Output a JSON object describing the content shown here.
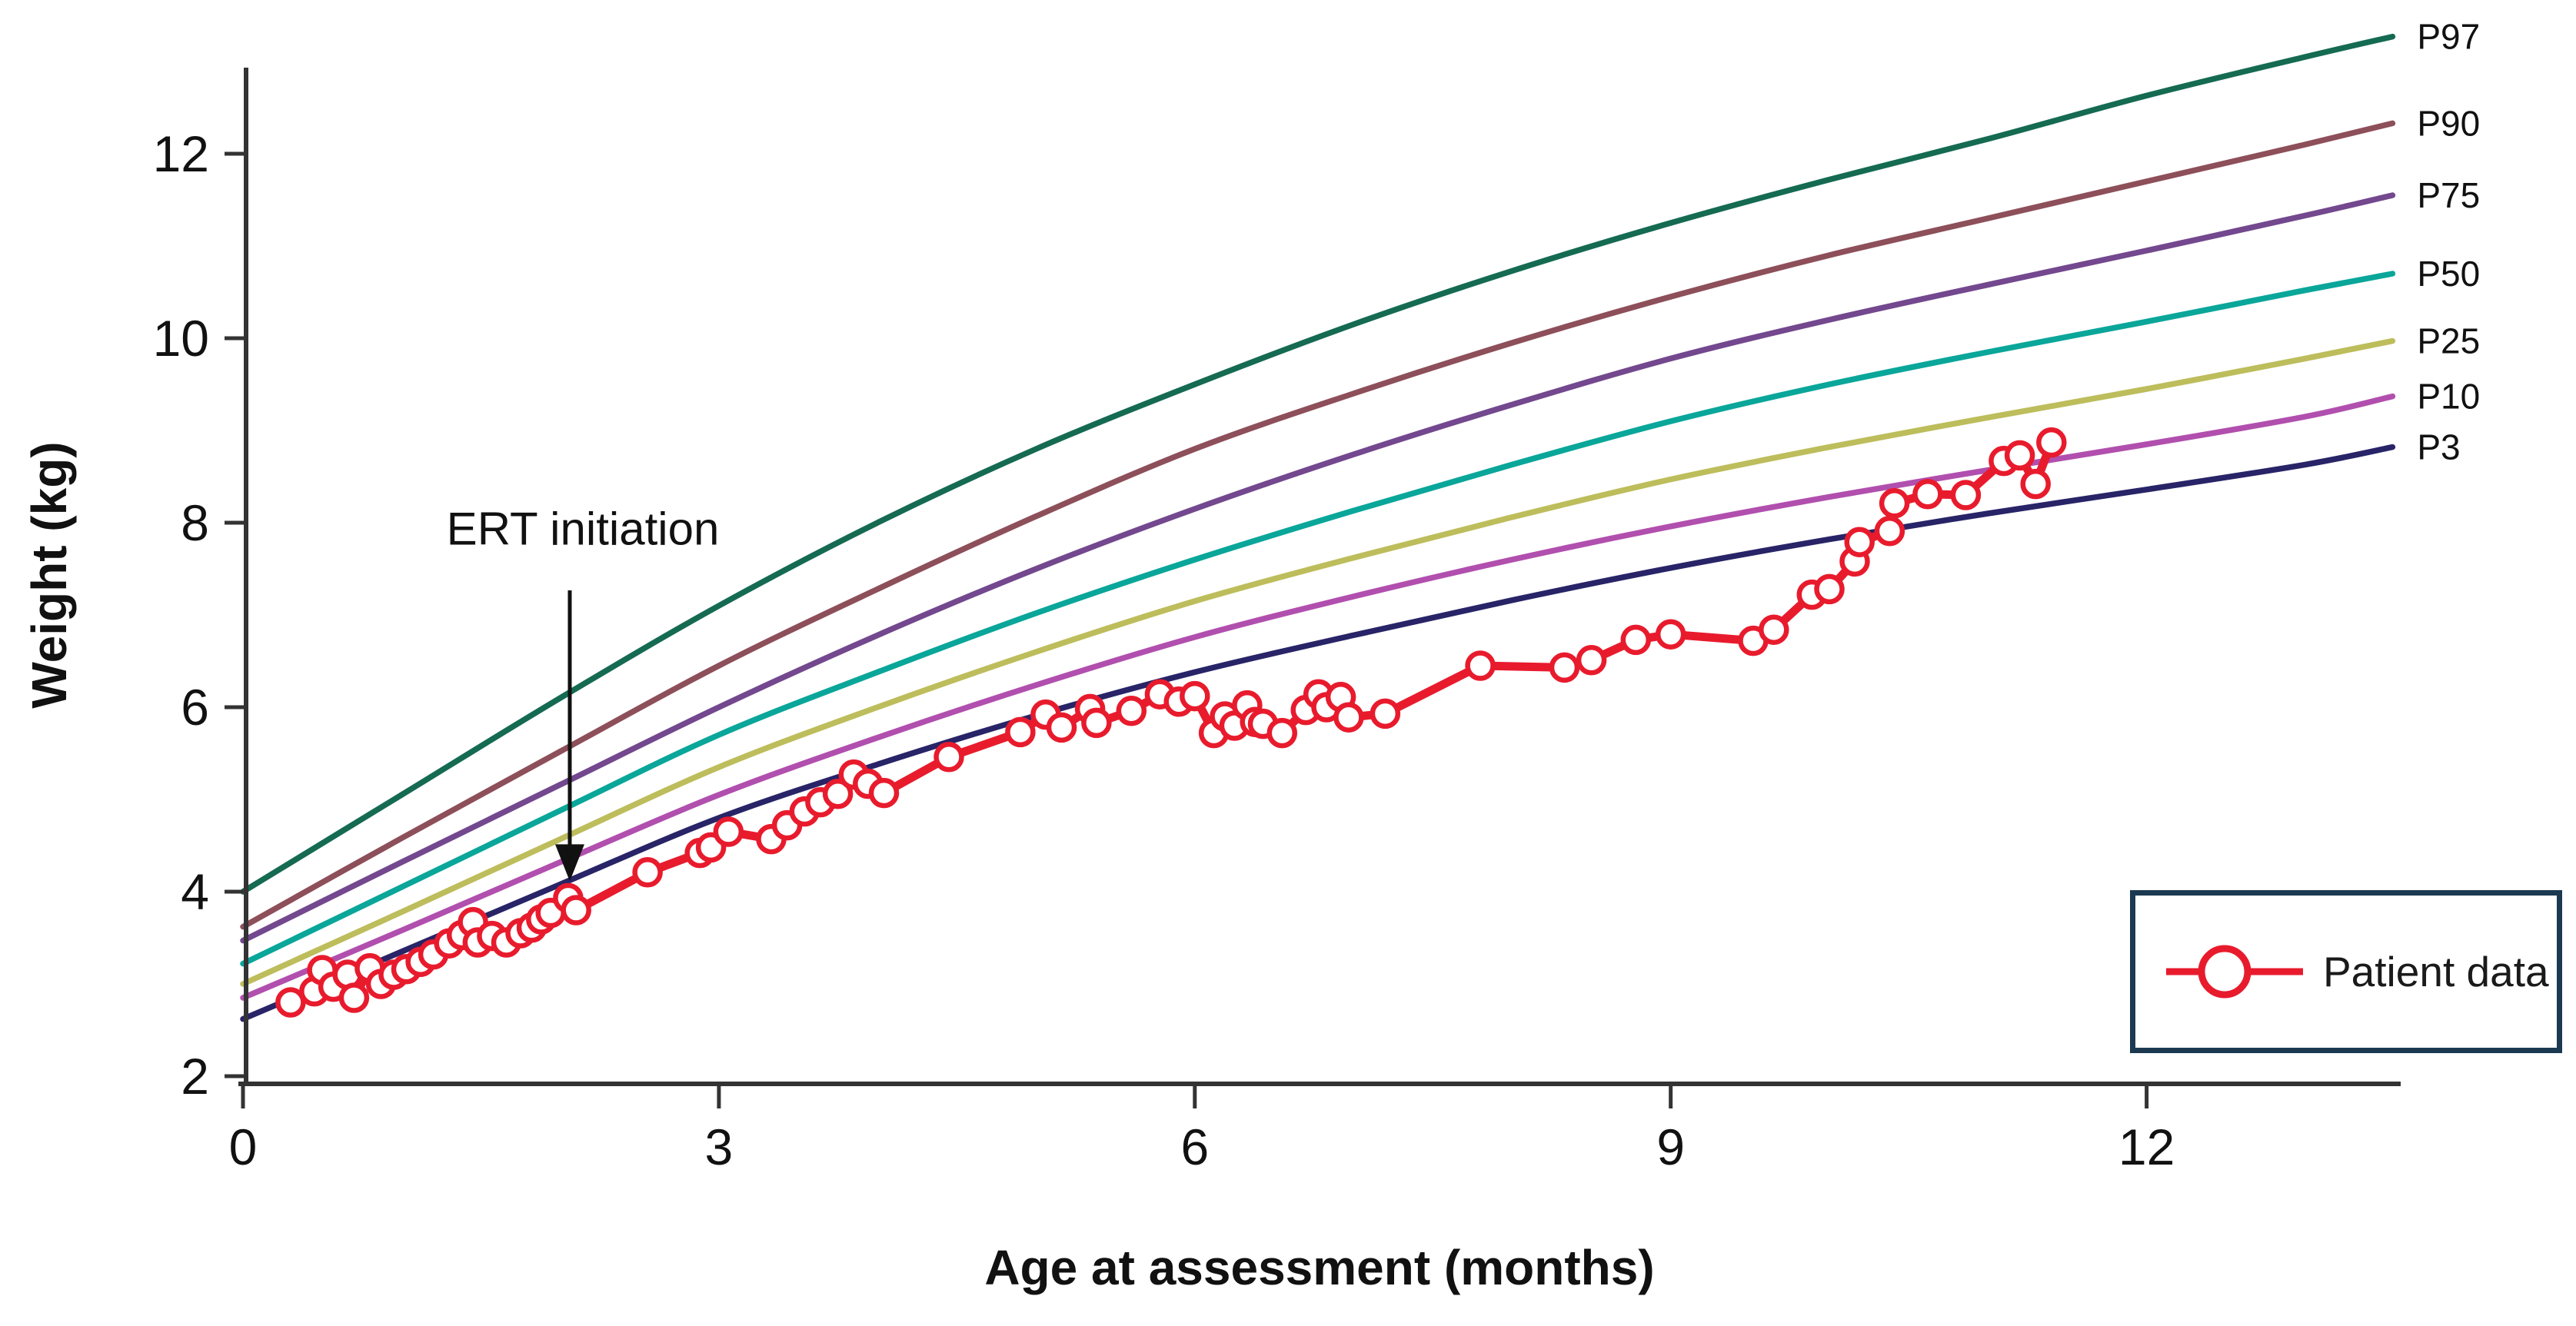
{
  "chart_data": {
    "type": "line",
    "title": "",
    "xlabel": "Age at assessment (months)",
    "ylabel": "Weight (kg)",
    "x_ticks": [
      0,
      3,
      6,
      9,
      12
    ],
    "y_ticks": [
      2,
      4,
      6,
      8,
      10,
      12
    ],
    "xlim": [
      0,
      13.6
    ],
    "ylim": [
      2,
      13.3
    ],
    "grid": false,
    "legend": {
      "position": "bottom-right",
      "label": "Patient data"
    },
    "annotation": {
      "text": "ERT initiation",
      "points_to": {
        "month": 2.06,
        "kg": 4.08
      }
    },
    "colors": {
      "axis": "#333333",
      "text": "#111111",
      "patient": "#e81b2d",
      "legend_border": "#1b3a52",
      "arrow": "#111111"
    },
    "percentile_series": [
      {
        "name": "P97",
        "color": "#156a52",
        "points": [
          [
            0,
            4.0
          ],
          [
            1,
            5.05
          ],
          [
            2,
            6.1
          ],
          [
            3,
            7.1
          ],
          [
            4,
            8.0
          ],
          [
            5,
            8.8
          ],
          [
            6,
            9.5
          ],
          [
            7,
            10.15
          ],
          [
            8,
            10.73
          ],
          [
            9,
            11.25
          ],
          [
            10,
            11.72
          ],
          [
            11,
            12.16
          ],
          [
            12,
            12.63
          ],
          [
            13,
            13.05
          ],
          [
            13.55,
            13.27
          ]
        ]
      },
      {
        "name": "P90",
        "color": "#8d4f5a",
        "points": [
          [
            0,
            3.62
          ],
          [
            1,
            4.58
          ],
          [
            2,
            5.52
          ],
          [
            3,
            6.45
          ],
          [
            4,
            7.28
          ],
          [
            5,
            8.07
          ],
          [
            6,
            8.8
          ],
          [
            7,
            9.4
          ],
          [
            8,
            9.95
          ],
          [
            9,
            10.45
          ],
          [
            10,
            10.9
          ],
          [
            11,
            11.3
          ],
          [
            12,
            11.7
          ],
          [
            13,
            12.1
          ],
          [
            13.55,
            12.33
          ]
        ]
      },
      {
        "name": "P75",
        "color": "#73488e",
        "points": [
          [
            0,
            3.47
          ],
          [
            1,
            4.32
          ],
          [
            2,
            5.16
          ],
          [
            3,
            6.0
          ],
          [
            4,
            6.78
          ],
          [
            5,
            7.5
          ],
          [
            6,
            8.15
          ],
          [
            7,
            8.74
          ],
          [
            8,
            9.28
          ],
          [
            9,
            9.78
          ],
          [
            10,
            10.2
          ],
          [
            11,
            10.58
          ],
          [
            12,
            10.95
          ],
          [
            13,
            11.33
          ],
          [
            13.55,
            11.55
          ]
        ]
      },
      {
        "name": "P50",
        "color": "#0aa69a",
        "points": [
          [
            0,
            3.22
          ],
          [
            1,
            4.05
          ],
          [
            2,
            4.88
          ],
          [
            3,
            5.7
          ],
          [
            4,
            6.38
          ],
          [
            5,
            7.02
          ],
          [
            6,
            7.6
          ],
          [
            7,
            8.13
          ],
          [
            8,
            8.63
          ],
          [
            9,
            9.1
          ],
          [
            10,
            9.5
          ],
          [
            11,
            9.85
          ],
          [
            12,
            10.18
          ],
          [
            13,
            10.52
          ],
          [
            13.55,
            10.7
          ]
        ]
      },
      {
        "name": "P25",
        "color": "#bdbd5c",
        "points": [
          [
            0,
            3.0
          ],
          [
            1,
            3.78
          ],
          [
            2,
            4.57
          ],
          [
            3,
            5.35
          ],
          [
            4,
            6.0
          ],
          [
            5,
            6.6
          ],
          [
            6,
            7.15
          ],
          [
            7,
            7.62
          ],
          [
            8,
            8.06
          ],
          [
            9,
            8.47
          ],
          [
            10,
            8.82
          ],
          [
            11,
            9.14
          ],
          [
            12,
            9.45
          ],
          [
            13,
            9.78
          ],
          [
            13.55,
            9.97
          ]
        ]
      },
      {
        "name": "P10",
        "color": "#b14fae",
        "points": [
          [
            0,
            2.85
          ],
          [
            1,
            3.58
          ],
          [
            2,
            4.32
          ],
          [
            3,
            5.05
          ],
          [
            4,
            5.67
          ],
          [
            5,
            6.24
          ],
          [
            6,
            6.76
          ],
          [
            7,
            7.2
          ],
          [
            8,
            7.6
          ],
          [
            9,
            7.96
          ],
          [
            10,
            8.28
          ],
          [
            11,
            8.57
          ],
          [
            12,
            8.85
          ],
          [
            13,
            9.15
          ],
          [
            13.55,
            9.37
          ]
        ]
      },
      {
        "name": "P3",
        "color": "#282467",
        "points": [
          [
            0,
            2.62
          ],
          [
            1,
            3.35
          ],
          [
            2,
            4.08
          ],
          [
            3,
            4.8
          ],
          [
            4,
            5.38
          ],
          [
            5,
            5.91
          ],
          [
            6,
            6.38
          ],
          [
            7,
            6.78
          ],
          [
            8,
            7.16
          ],
          [
            9,
            7.51
          ],
          [
            10,
            7.82
          ],
          [
            11,
            8.1
          ],
          [
            12,
            8.36
          ],
          [
            13,
            8.63
          ],
          [
            13.55,
            8.82
          ]
        ]
      }
    ],
    "patient_series": {
      "name": "Patient data",
      "marker": "open-circle",
      "color": "#e81b2d",
      "points": [
        [
          0.3,
          2.8
        ],
        [
          0.45,
          2.92
        ],
        [
          0.5,
          3.15
        ],
        [
          0.57,
          2.97
        ],
        [
          0.66,
          3.1
        ],
        [
          0.7,
          2.85
        ],
        [
          0.8,
          3.17
        ],
        [
          0.87,
          3.0
        ],
        [
          0.95,
          3.1
        ],
        [
          1.03,
          3.16
        ],
        [
          1.12,
          3.24
        ],
        [
          1.2,
          3.32
        ],
        [
          1.3,
          3.44
        ],
        [
          1.38,
          3.53
        ],
        [
          1.45,
          3.67
        ],
        [
          1.48,
          3.45
        ],
        [
          1.57,
          3.52
        ],
        [
          1.66,
          3.45
        ],
        [
          1.75,
          3.55
        ],
        [
          1.82,
          3.61
        ],
        [
          1.88,
          3.7
        ],
        [
          1.94,
          3.77
        ],
        [
          2.05,
          3.93
        ],
        [
          2.1,
          3.8
        ],
        [
          2.55,
          4.21
        ],
        [
          2.88,
          4.42
        ],
        [
          2.95,
          4.48
        ],
        [
          3.06,
          4.65
        ],
        [
          3.33,
          4.57
        ],
        [
          3.43,
          4.72
        ],
        [
          3.54,
          4.87
        ],
        [
          3.64,
          4.97
        ],
        [
          3.75,
          5.06
        ],
        [
          3.85,
          5.27
        ],
        [
          3.94,
          5.17
        ],
        [
          4.04,
          5.07
        ],
        [
          4.45,
          5.46
        ],
        [
          4.9,
          5.73
        ],
        [
          5.06,
          5.92
        ],
        [
          5.16,
          5.78
        ],
        [
          5.34,
          5.98
        ],
        [
          5.38,
          5.83
        ],
        [
          5.6,
          5.96
        ],
        [
          5.78,
          6.14
        ],
        [
          5.9,
          6.06
        ],
        [
          6.0,
          6.12
        ],
        [
          6.12,
          5.72
        ],
        [
          6.19,
          5.9
        ],
        [
          6.25,
          5.8
        ],
        [
          6.33,
          6.02
        ],
        [
          6.38,
          5.84
        ],
        [
          6.43,
          5.82
        ],
        [
          6.55,
          5.72
        ],
        [
          6.7,
          5.97
        ],
        [
          6.78,
          6.14
        ],
        [
          6.83,
          6.0
        ],
        [
          6.92,
          6.11
        ],
        [
          6.97,
          5.89
        ],
        [
          7.2,
          5.93
        ],
        [
          7.8,
          6.45
        ],
        [
          8.33,
          6.43
        ],
        [
          8.5,
          6.51
        ],
        [
          8.78,
          6.73
        ],
        [
          9.0,
          6.79
        ],
        [
          9.52,
          6.72
        ],
        [
          9.65,
          6.84
        ],
        [
          9.89,
          7.22
        ],
        [
          10.0,
          7.28
        ],
        [
          10.16,
          7.58
        ],
        [
          10.19,
          7.79
        ],
        [
          10.38,
          7.91
        ],
        [
          10.41,
          8.21
        ],
        [
          10.62,
          8.31
        ],
        [
          10.86,
          8.3
        ],
        [
          11.1,
          8.67
        ],
        [
          11.2,
          8.73
        ],
        [
          11.3,
          8.42
        ],
        [
          11.4,
          8.87
        ]
      ]
    }
  }
}
